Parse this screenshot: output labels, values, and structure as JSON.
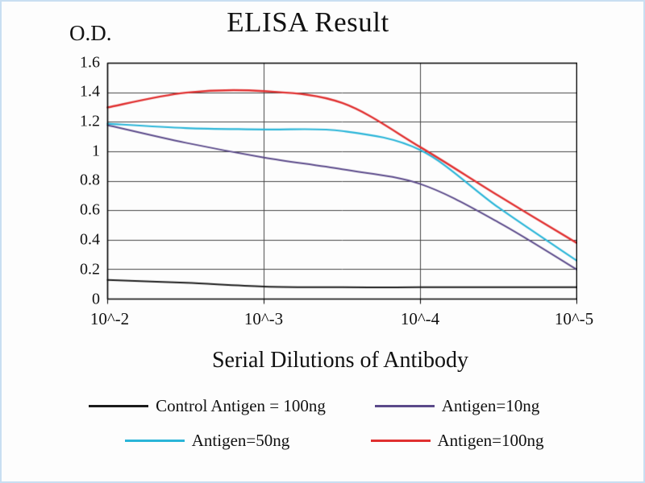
{
  "frame": {
    "border_color": "#c9dff2",
    "background": "#fdfdfd"
  },
  "chart_data": {
    "type": "line",
    "title": "ELISA Result",
    "ylabel": "O.D.",
    "xlabel": "Serial Dilutions of Antibody",
    "ylim": [
      0,
      1.6
    ],
    "grid": true,
    "legend_position": "bottom",
    "y_tick_labels": [
      "1.6",
      "1.4",
      "1.2",
      "1",
      "0.8",
      "0.6",
      "0.4",
      "0.2",
      "0"
    ],
    "x_tick_labels": [
      "10^-2",
      "10^-3",
      "10^-4",
      "10^-5"
    ],
    "x_exponents": [
      -2,
      -2.5,
      -3,
      -3.5,
      -4,
      -4.5,
      -5
    ],
    "grid_color": "#454545",
    "series": [
      {
        "name": "Control Antigen = 100ng",
        "color": "#1b1b1b",
        "values": [
          0.13,
          0.11,
          0.085,
          0.08,
          0.08,
          0.08,
          0.08
        ]
      },
      {
        "name": "Antigen=10ng",
        "color": "#5b4a8a",
        "values": [
          1.18,
          1.06,
          0.96,
          0.88,
          0.78,
          0.52,
          0.2
        ]
      },
      {
        "name": "Antigen=50ng",
        "color": "#2ab5d8",
        "values": [
          1.19,
          1.16,
          1.15,
          1.14,
          1.01,
          0.62,
          0.26
        ]
      },
      {
        "name": "Antigen=100ng",
        "color": "#e03030",
        "values": [
          1.3,
          1.4,
          1.41,
          1.33,
          1.03,
          0.7,
          0.38
        ]
      }
    ]
  }
}
